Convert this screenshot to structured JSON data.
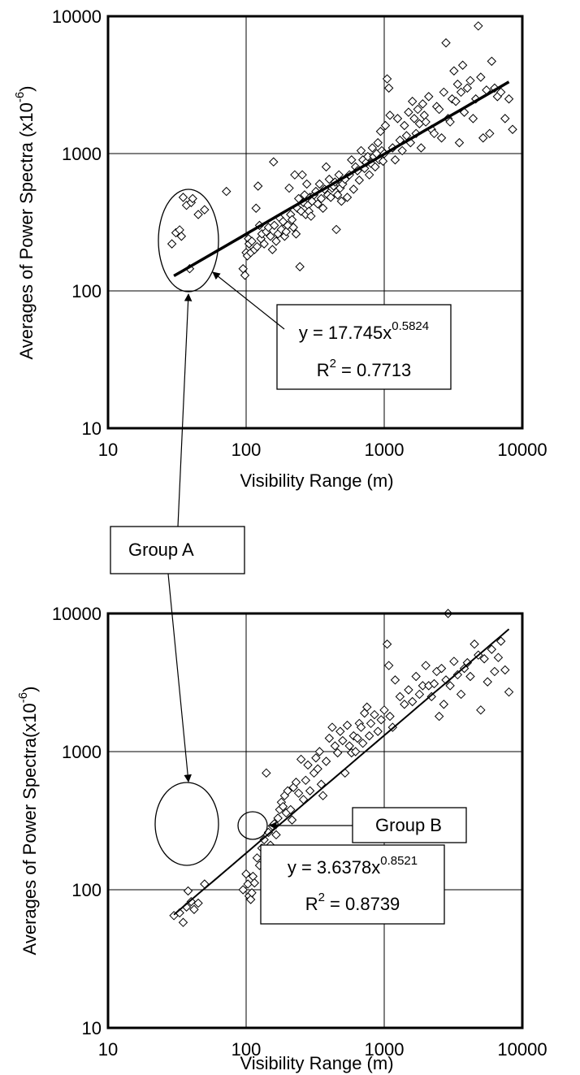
{
  "chart_data": [
    {
      "type": "scatter",
      "title": "",
      "xlabel": "Visibility Range (m)",
      "ylabel": "Averages of Power Spectra (x10",
      "ylabel_exp": "-6",
      "ylabel_close": ")",
      "xscale": "log",
      "yscale": "log",
      "xlim": [
        10,
        10000
      ],
      "ylim": [
        10,
        10000
      ],
      "grid": true,
      "x_ticks": [
        "10",
        "100",
        "1000",
        "10000"
      ],
      "y_ticks": [
        "10",
        "100",
        "1000",
        "10000"
      ],
      "marker": "diamond-open",
      "trendline": {
        "type": "power",
        "a": 17.745,
        "b": 0.5824,
        "x_range": [
          30,
          8000
        ],
        "eq_prefix": "y = 17.745x",
        "eq_exp": "0.5824",
        "r2_prefix": "R",
        "r2_exp": "2",
        "r2_value": " = 0.7713"
      },
      "groups": [
        {
          "name": "Group A",
          "x_range": [
            28,
            50
          ],
          "y_range": [
            140,
            500
          ]
        }
      ],
      "points": [
        [
          29,
          220
        ],
        [
          31,
          265
        ],
        [
          33,
          278
        ],
        [
          34,
          250
        ],
        [
          35,
          480
        ],
        [
          37,
          420
        ],
        [
          40,
          440
        ],
        [
          41,
          470
        ],
        [
          39,
          145
        ],
        [
          45,
          360
        ],
        [
          50,
          390
        ],
        [
          72,
          530
        ],
        [
          95,
          145
        ],
        [
          98,
          130
        ],
        [
          100,
          190
        ],
        [
          102,
          180
        ],
        [
          104,
          240
        ],
        [
          105,
          220
        ],
        [
          108,
          190
        ],
        [
          110,
          230
        ],
        [
          115,
          200
        ],
        [
          118,
          400
        ],
        [
          120,
          210
        ],
        [
          122,
          580
        ],
        [
          125,
          300
        ],
        [
          128,
          240
        ],
        [
          130,
          260
        ],
        [
          135,
          220
        ],
        [
          140,
          270
        ],
        [
          145,
          290
        ],
        [
          150,
          250
        ],
        [
          155,
          200
        ],
        [
          158,
          870
        ],
        [
          160,
          300
        ],
        [
          165,
          230
        ],
        [
          170,
          260
        ],
        [
          175,
          340
        ],
        [
          180,
          280
        ],
        [
          185,
          320
        ],
        [
          190,
          250
        ],
        [
          195,
          270
        ],
        [
          200,
          300
        ],
        [
          205,
          560
        ],
        [
          210,
          360
        ],
        [
          215,
          330
        ],
        [
          220,
          290
        ],
        [
          225,
          700
        ],
        [
          230,
          260
        ],
        [
          235,
          400
        ],
        [
          240,
          470
        ],
        [
          245,
          150
        ],
        [
          250,
          380
        ],
        [
          255,
          700
        ],
        [
          260,
          440
        ],
        [
          265,
          500
        ],
        [
          270,
          360
        ],
        [
          275,
          600
        ],
        [
          280,
          420
        ],
        [
          285,
          380
        ],
        [
          290,
          480
        ],
        [
          295,
          350
        ],
        [
          300,
          450
        ],
        [
          310,
          500
        ],
        [
          320,
          530
        ],
        [
          330,
          430
        ],
        [
          340,
          600
        ],
        [
          350,
          470
        ],
        [
          360,
          400
        ],
        [
          370,
          550
        ],
        [
          380,
          800
        ],
        [
          390,
          500
        ],
        [
          400,
          650
        ],
        [
          410,
          480
        ],
        [
          420,
          560
        ],
        [
          430,
          580
        ],
        [
          440,
          620
        ],
        [
          450,
          280
        ],
        [
          460,
          500
        ],
        [
          470,
          700
        ],
        [
          480,
          560
        ],
        [
          490,
          450
        ],
        [
          500,
          600
        ],
        [
          520,
          650
        ],
        [
          540,
          480
        ],
        [
          560,
          700
        ],
        [
          580,
          900
        ],
        [
          600,
          550
        ],
        [
          620,
          800
        ],
        [
          640,
          750
        ],
        [
          660,
          640
        ],
        [
          680,
          1050
        ],
        [
          700,
          900
        ],
        [
          720,
          780
        ],
        [
          740,
          860
        ],
        [
          760,
          950
        ],
        [
          780,
          700
        ],
        [
          800,
          850
        ],
        [
          820,
          1100
        ],
        [
          840,
          950
        ],
        [
          860,
          800
        ],
        [
          880,
          1000
        ],
        [
          900,
          1200
        ],
        [
          920,
          900
        ],
        [
          940,
          1450
        ],
        [
          960,
          1050
        ],
        [
          980,
          880
        ],
        [
          1000,
          1000
        ],
        [
          1020,
          1600
        ],
        [
          1050,
          3500
        ],
        [
          1080,
          3000
        ],
        [
          1100,
          1900
        ],
        [
          1150,
          1100
        ],
        [
          1200,
          900
        ],
        [
          1250,
          1800
        ],
        [
          1300,
          1250
        ],
        [
          1350,
          1050
        ],
        [
          1400,
          1600
        ],
        [
          1450,
          1350
        ],
        [
          1500,
          2000
        ],
        [
          1550,
          1200
        ],
        [
          1600,
          2400
        ],
        [
          1650,
          1800
        ],
        [
          1700,
          1400
        ],
        [
          1750,
          2100
        ],
        [
          1800,
          1650
        ],
        [
          1850,
          1100
        ],
        [
          1900,
          2300
        ],
        [
          1950,
          1900
        ],
        [
          2000,
          1700
        ],
        [
          2100,
          2600
        ],
        [
          2200,
          1500
        ],
        [
          2300,
          1400
        ],
        [
          2400,
          2200
        ],
        [
          2500,
          2100
        ],
        [
          2600,
          1300
        ],
        [
          2700,
          2800
        ],
        [
          2800,
          6400
        ],
        [
          2900,
          1800
        ],
        [
          3000,
          1700
        ],
        [
          3100,
          2500
        ],
        [
          3200,
          4000
        ],
        [
          3300,
          2400
        ],
        [
          3400,
          3200
        ],
        [
          3500,
          1200
        ],
        [
          3600,
          2800
        ],
        [
          3700,
          4400
        ],
        [
          3800,
          2000
        ],
        [
          4000,
          3000
        ],
        [
          4200,
          3400
        ],
        [
          4400,
          1800
        ],
        [
          4600,
          2500
        ],
        [
          4800,
          8500
        ],
        [
          5000,
          3600
        ],
        [
          5200,
          1300
        ],
        [
          5500,
          2900
        ],
        [
          5800,
          1400
        ],
        [
          6000,
          4700
        ],
        [
          6300,
          3000
        ],
        [
          6600,
          2600
        ],
        [
          7000,
          2800
        ],
        [
          7500,
          1800
        ],
        [
          8000,
          2500
        ],
        [
          8500,
          1500
        ]
      ]
    },
    {
      "type": "scatter",
      "title": "",
      "xlabel": "Visibility Range (m)",
      "ylabel": "Averages of Power Spectra(x10",
      "ylabel_exp": "-6",
      "ylabel_close": ")",
      "xscale": "log",
      "yscale": "log",
      "xlim": [
        10,
        10000
      ],
      "ylim": [
        10,
        10000
      ],
      "grid": true,
      "x_ticks": [
        "10",
        "100",
        "1000",
        "10000"
      ],
      "y_ticks": [
        "10",
        "100",
        "1000",
        "10000"
      ],
      "marker": "diamond-open",
      "trendline": {
        "type": "power",
        "a": 3.6378,
        "b": 0.8521,
        "x_range": [
          30,
          8000
        ],
        "eq_prefix": "y = 3.6378x",
        "eq_exp": "0.8521",
        "r2_prefix": "R",
        "r2_exp": "2",
        "r2_value": " = 0.8739"
      },
      "groups": [
        {
          "name": "Group A",
          "x_range": [
            30,
            50
          ],
          "y_range": [
            58,
            105
          ]
        },
        {
          "name": "Group B",
          "x_range": [
            95,
            120
          ],
          "y_range": [
            80,
            115
          ]
        }
      ],
      "points": [
        [
          30,
          65
        ],
        [
          33,
          68
        ],
        [
          35,
          58
        ],
        [
          37,
          75
        ],
        [
          38,
          98
        ],
        [
          40,
          82
        ],
        [
          42,
          72
        ],
        [
          45,
          80
        ],
        [
          50,
          110
        ],
        [
          95,
          100
        ],
        [
          100,
          130
        ],
        [
          103,
          110
        ],
        [
          105,
          90
        ],
        [
          108,
          85
        ],
        [
          110,
          95
        ],
        [
          112,
          125
        ],
        [
          115,
          112
        ],
        [
          120,
          170
        ],
        [
          125,
          150
        ],
        [
          130,
          200
        ],
        [
          135,
          230
        ],
        [
          140,
          700
        ],
        [
          145,
          260
        ],
        [
          150,
          210
        ],
        [
          155,
          290
        ],
        [
          160,
          300
        ],
        [
          165,
          250
        ],
        [
          170,
          330
        ],
        [
          175,
          380
        ],
        [
          180,
          430
        ],
        [
          185,
          400
        ],
        [
          190,
          480
        ],
        [
          195,
          360
        ],
        [
          200,
          520
        ],
        [
          210,
          380
        ],
        [
          215,
          320
        ],
        [
          220,
          550
        ],
        [
          230,
          600
        ],
        [
          240,
          500
        ],
        [
          250,
          880
        ],
        [
          260,
          450
        ],
        [
          270,
          620
        ],
        [
          280,
          800
        ],
        [
          290,
          520
        ],
        [
          300,
          120
        ],
        [
          310,
          700
        ],
        [
          320,
          900
        ],
        [
          330,
          750
        ],
        [
          340,
          1000
        ],
        [
          350,
          580
        ],
        [
          360,
          480
        ],
        [
          380,
          850
        ],
        [
          400,
          1250
        ],
        [
          420,
          1500
        ],
        [
          440,
          1100
        ],
        [
          460,
          980
        ],
        [
          480,
          1400
        ],
        [
          500,
          1200
        ],
        [
          520,
          700
        ],
        [
          540,
          1550
        ],
        [
          560,
          1100
        ],
        [
          580,
          980
        ],
        [
          600,
          1300
        ],
        [
          620,
          1000
        ],
        [
          640,
          1250
        ],
        [
          660,
          1600
        ],
        [
          680,
          1500
        ],
        [
          700,
          1150
        ],
        [
          720,
          1900
        ],
        [
          750,
          2100
        ],
        [
          780,
          1300
        ],
        [
          800,
          1600
        ],
        [
          850,
          1850
        ],
        [
          900,
          1400
        ],
        [
          950,
          1700
        ],
        [
          1000,
          2000
        ],
        [
          1050,
          6000
        ],
        [
          1080,
          4200
        ],
        [
          1100,
          1800
        ],
        [
          1150,
          1500
        ],
        [
          1200,
          3300
        ],
        [
          1300,
          2500
        ],
        [
          1400,
          2200
        ],
        [
          1500,
          2800
        ],
        [
          1600,
          2300
        ],
        [
          1700,
          3500
        ],
        [
          1800,
          2600
        ],
        [
          1900,
          3000
        ],
        [
          2000,
          4200
        ],
        [
          2100,
          3000
        ],
        [
          2200,
          2500
        ],
        [
          2300,
          3100
        ],
        [
          2400,
          3800
        ],
        [
          2500,
          1800
        ],
        [
          2600,
          4000
        ],
        [
          2700,
          2200
        ],
        [
          2800,
          3300
        ],
        [
          2900,
          10000
        ],
        [
          3000,
          3000
        ],
        [
          3200,
          4500
        ],
        [
          3400,
          3600
        ],
        [
          3600,
          2600
        ],
        [
          3800,
          4000
        ],
        [
          4000,
          4400
        ],
        [
          4200,
          3500
        ],
        [
          4500,
          6000
        ],
        [
          4800,
          5000
        ],
        [
          5000,
          2000
        ],
        [
          5300,
          4700
        ],
        [
          5600,
          3200
        ],
        [
          6000,
          5500
        ],
        [
          6300,
          3800
        ],
        [
          6700,
          4800
        ],
        [
          7000,
          6300
        ],
        [
          7500,
          3900
        ],
        [
          8000,
          2700
        ]
      ]
    }
  ]
}
